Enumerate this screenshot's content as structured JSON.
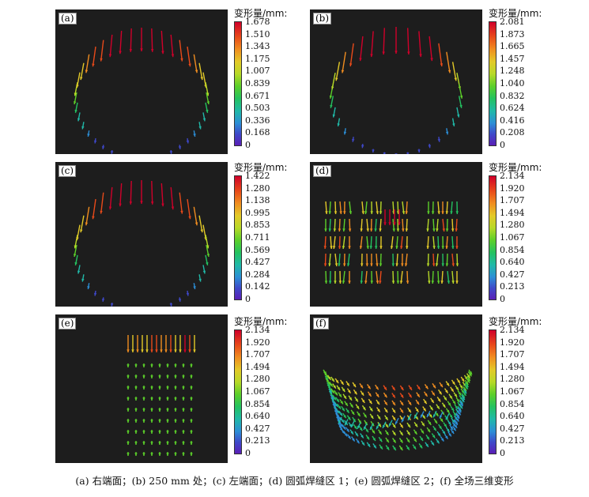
{
  "panels": [
    {
      "label": "(a)"
    },
    {
      "label": "(b)"
    },
    {
      "label": "(c)"
    },
    {
      "label": "(d)"
    },
    {
      "label": "(e)"
    },
    {
      "label": "(f)"
    }
  ],
  "colorbars": [
    {
      "title": "变形量/mm:",
      "ticks": [
        "1.678",
        "1.510",
        "1.343",
        "1.175",
        "1.007",
        "0.839",
        "0.671",
        "0.503",
        "0.336",
        "0.168",
        "0"
      ]
    },
    {
      "title": "变形量/mm:",
      "ticks": [
        "2.081",
        "1.873",
        "1.665",
        "1.457",
        "1.248",
        "1.040",
        "0.832",
        "0.624",
        "0.416",
        "0.208",
        "0"
      ]
    },
    {
      "title": "变形量/mm:",
      "ticks": [
        "1.422",
        "1.280",
        "1.138",
        "0.995",
        "0.853",
        "0.711",
        "0.569",
        "0.427",
        "0.284",
        "0.142",
        "0"
      ]
    },
    {
      "title": "变形量/mm:",
      "ticks": [
        "2.134",
        "1.920",
        "1.707",
        "1.494",
        "1.280",
        "1.067",
        "0.854",
        "0.640",
        "0.427",
        "0.213",
        "0"
      ]
    },
    {
      "title": "变形量/mm:",
      "ticks": [
        "2.134",
        "1.920",
        "1.707",
        "1.494",
        "1.280",
        "1.067",
        "0.854",
        "0.640",
        "0.427",
        "0.213",
        "0"
      ]
    },
    {
      "title": "变形量/mm:",
      "ticks": [
        "2.134",
        "1.920",
        "1.707",
        "1.494",
        "1.280",
        "1.067",
        "0.854",
        "0.640",
        "0.427",
        "0.213",
        "0"
      ]
    }
  ],
  "caption": "(a) 右端面；(b) 250 mm 处；(c) 左端面；(d) 圆弧焊缝区 1；(e) 圆弧焊缝区 2；(f) 全场三维变形",
  "colors": {
    "background": "#1d1d1d",
    "high": "#d0002a",
    "mid": "#5ccf2a",
    "low": "#5a1fb6"
  }
}
